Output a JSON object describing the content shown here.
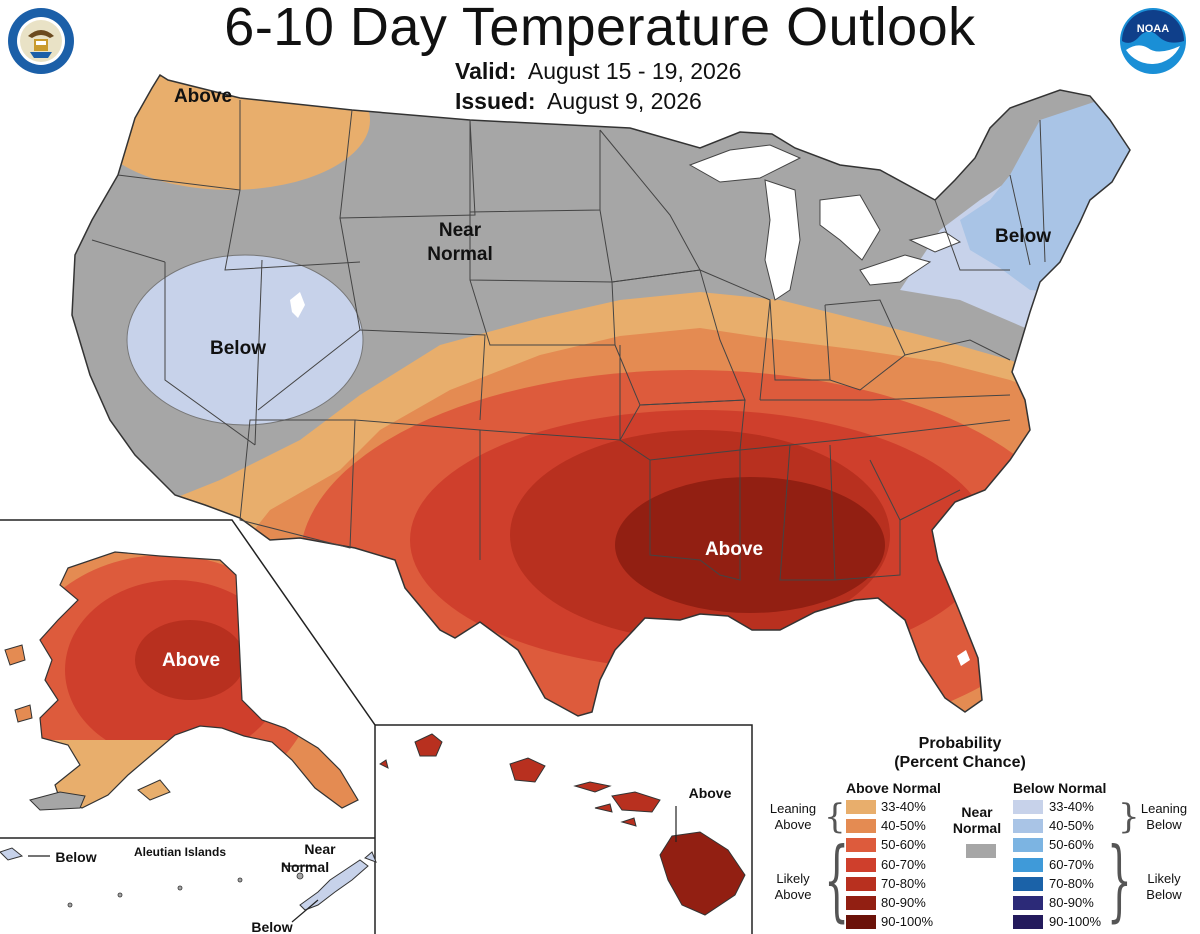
{
  "header": {
    "title": "6-10 Day Temperature Outlook",
    "valid_label": "Valid:",
    "valid_value": "August 15 - 19, 2026",
    "issued_label": "Issued:",
    "issued_value": "August 9, 2026"
  },
  "logos": {
    "left": "department-of-commerce-seal",
    "right": "noaa-logo",
    "noaa_text": "NOAA"
  },
  "map_labels": {
    "conus_above_nw": "Above",
    "conus_near_normal_1": "Near",
    "conus_near_normal_2": "Normal",
    "conus_below_west": "Below",
    "conus_below_ne": "Below",
    "conus_above_south": "Above",
    "alaska_above": "Above",
    "aleutian_title": "Aleutian Islands",
    "aleutian_below_w": "Below",
    "aleutian_near_1": "Near",
    "aleutian_near_2": "Normal",
    "aleutian_below_e": "Below",
    "hawaii_above": "Above"
  },
  "legend": {
    "title_1": "Probability",
    "title_2": "(Percent Chance)",
    "above_header": "Above Normal",
    "below_header": "Below Normal",
    "near_1": "Near",
    "near_2": "Normal",
    "leaning_above_1": "Leaning",
    "leaning_above_2": "Above",
    "likely_above_1": "Likely",
    "likely_above_2": "Above",
    "leaning_below_1": "Leaning",
    "leaning_below_2": "Below",
    "likely_below_1": "Likely",
    "likely_below_2": "Below",
    "above": [
      {
        "range": "33-40%",
        "color": "#e8ae6c"
      },
      {
        "range": "40-50%",
        "color": "#e48b52"
      },
      {
        "range": "50-60%",
        "color": "#dd5b3c"
      },
      {
        "range": "60-70%",
        "color": "#cf3f2c"
      },
      {
        "range": "70-80%",
        "color": "#b8301f"
      },
      {
        "range": "80-90%",
        "color": "#921f12"
      },
      {
        "range": "90-100%",
        "color": "#6b1209"
      }
    ],
    "below": [
      {
        "range": "33-40%",
        "color": "#c7d2ea"
      },
      {
        "range": "40-50%",
        "color": "#a9c4e6"
      },
      {
        "range": "50-60%",
        "color": "#7cb4e2"
      },
      {
        "range": "60-70%",
        "color": "#3f9ad9"
      },
      {
        "range": "70-80%",
        "color": "#1b62a8"
      },
      {
        "range": "80-90%",
        "color": "#2c2a78"
      },
      {
        "range": "90-100%",
        "color": "#231a5c"
      }
    ],
    "near_color": "#a6a6a6"
  }
}
